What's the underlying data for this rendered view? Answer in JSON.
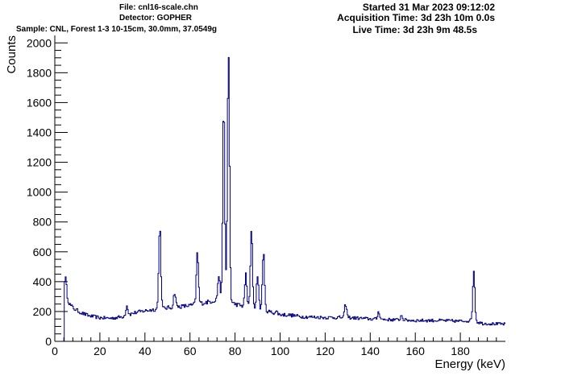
{
  "header": {
    "file": "File: cnl16-scale.chn",
    "detector": "Detector: GOPHER",
    "sample": "Sample: CNL, Forest 1-3 10-15cm, 30.0mm, 37.0549g",
    "started": "Started 31 Mar 2023 09:12:02",
    "acquisition": "Acquisition Time: 3d 23h 10m 0.0s",
    "live": "Live Time: 3d 23h 9m 48.5s"
  },
  "colors": {
    "line": "#000080",
    "axis": "#000000",
    "background": "#ffffff"
  },
  "chart_data": {
    "type": "line",
    "style": "step",
    "xlabel": "Energy (keV)",
    "ylabel": "Counts",
    "xlim": [
      0,
      200
    ],
    "ylim": [
      0,
      2050
    ],
    "xticks": [
      0,
      20,
      40,
      60,
      80,
      100,
      120,
      140,
      160,
      180
    ],
    "yticks": [
      0,
      200,
      400,
      600,
      800,
      1000,
      1200,
      1400,
      1600,
      1800,
      2000
    ],
    "grid": false,
    "baseline": [
      [
        4.2,
        360
      ],
      [
        5,
        300
      ],
      [
        6,
        270
      ],
      [
        7,
        240
      ],
      [
        9,
        215
      ],
      [
        12,
        190
      ],
      [
        15,
        172
      ],
      [
        20,
        158
      ],
      [
        25,
        155
      ],
      [
        30,
        165
      ],
      [
        35,
        190
      ],
      [
        40,
        205
      ],
      [
        45,
        215
      ],
      [
        50,
        225
      ],
      [
        55,
        232
      ],
      [
        60,
        240
      ],
      [
        65,
        255
      ],
      [
        70,
        270
      ],
      [
        74,
        290
      ],
      [
        80,
        250
      ],
      [
        85,
        230
      ],
      [
        90,
        220
      ],
      [
        95,
        200
      ],
      [
        100,
        180
      ],
      [
        105,
        175
      ],
      [
        110,
        165
      ],
      [
        120,
        160
      ],
      [
        130,
        160
      ],
      [
        140,
        150
      ],
      [
        150,
        145
      ],
      [
        160,
        140
      ],
      [
        170,
        140
      ],
      [
        180,
        135
      ],
      [
        185,
        140
      ],
      [
        190,
        120
      ],
      [
        200,
        115
      ]
    ],
    "peaks": [
      {
        "energy": 4.8,
        "counts": 420
      },
      {
        "energy": 32.0,
        "counts": 240
      },
      {
        "energy": 46.6,
        "counts": 780
      },
      {
        "energy": 53.2,
        "counts": 330
      },
      {
        "energy": 63.3,
        "counts": 595
      },
      {
        "energy": 72.8,
        "counts": 440
      },
      {
        "energy": 75.0,
        "counts": 1560
      },
      {
        "energy": 77.1,
        "counts": 1950
      },
      {
        "energy": 84.8,
        "counts": 450
      },
      {
        "energy": 87.3,
        "counts": 740
      },
      {
        "energy": 90.0,
        "counts": 450
      },
      {
        "energy": 92.6,
        "counts": 600
      },
      {
        "energy": 98.4,
        "counts": 200
      },
      {
        "energy": 129.1,
        "counts": 250
      },
      {
        "energy": 143.8,
        "counts": 200
      },
      {
        "energy": 153.9,
        "counts": 175
      },
      {
        "energy": 186.0,
        "counts": 480
      }
    ]
  }
}
